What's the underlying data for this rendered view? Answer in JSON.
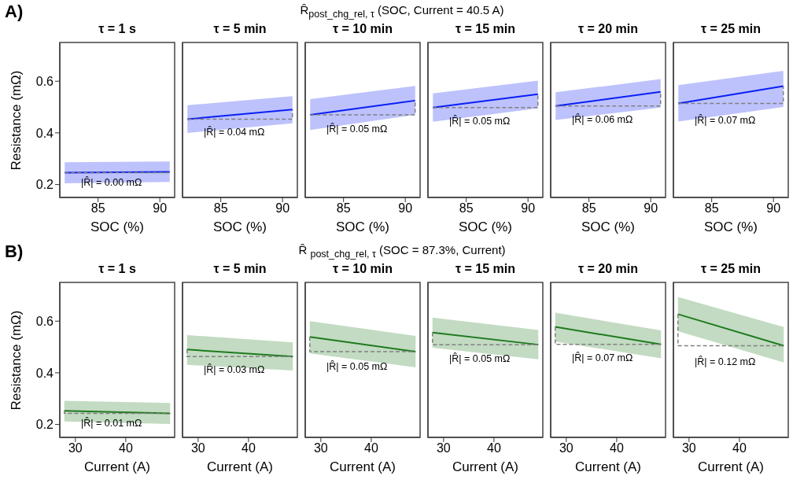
{
  "chart_data": [
    {
      "type": "line",
      "title": "τ = 1 s",
      "xlabel": "SOC (%)",
      "ylabel": "Resistance (mΩ)",
      "xlim": [
        81.9,
        91.2
      ],
      "xticks": [
        85,
        90
      ],
      "ylim": [
        0.15,
        0.75
      ],
      "yticks": [
        0.2,
        0.4,
        0.6
      ],
      "annotations": [
        "A)",
        "R̂$_{post_chg_rel, τ}$ (SOC, Current = 40.5 A)",
        "|R̂| = 0.00 mΩ"
      ],
      "series": [
        {
          "color": "#0a1ff5",
          "x": [
            82.3,
            90.8
          ],
          "values": [
            0.246,
            0.249
          ],
          "lower": [
            0.205,
            0.21
          ],
          "upper": [
            0.286,
            0.289
          ]
        },
        {
          "color": "#808080",
          "line_style": "dashed",
          "x": [
            82.3,
            90.8,
            90.8
          ],
          "values": [
            0.246,
            0.246,
            0.249
          ]
        }
      ]
    },
    {
      "type": "line",
      "title": "τ = 5 min",
      "xlabel": "SOC (%)",
      "xlim": [
        81.9,
        91.2
      ],
      "xticks": [
        85,
        90
      ],
      "ylim": [
        0.15,
        0.75
      ],
      "yticks": [
        0.2,
        0.4,
        0.6
      ],
      "tick_labels": "x",
      "annotations": [
        "|R̂| = 0.04 mΩ"
      ],
      "series": [
        {
          "color": "#0a1ff5",
          "x": [
            82.3,
            90.8
          ],
          "values": [
            0.453,
            0.49
          ],
          "lower": [
            0.4,
            0.437
          ],
          "upper": [
            0.507,
            0.542
          ]
        },
        {
          "color": "#808080",
          "line_style": "dashed",
          "x": [
            82.3,
            90.8,
            90.8
          ],
          "values": [
            0.453,
            0.453,
            0.49
          ]
        }
      ]
    },
    {
      "type": "line",
      "title": "τ = 10 min",
      "xlabel": "SOC (%)",
      "xlim": [
        81.9,
        91.2
      ],
      "xticks": [
        85,
        90
      ],
      "ylim": [
        0.15,
        0.75
      ],
      "yticks": [
        0.2,
        0.4,
        0.6
      ],
      "tick_labels": "x",
      "annotations": [
        "|R̂| = 0.05 mΩ"
      ],
      "series": [
        {
          "color": "#0a1ff5",
          "x": [
            82.3,
            90.8
          ],
          "values": [
            0.47,
            0.525
          ],
          "lower": [
            0.411,
            0.47
          ],
          "upper": [
            0.531,
            0.582
          ]
        },
        {
          "color": "#808080",
          "line_style": "dashed",
          "x": [
            82.3,
            90.8,
            90.8
          ],
          "values": [
            0.47,
            0.47,
            0.525
          ]
        }
      ]
    },
    {
      "type": "line",
      "title": "τ = 15 min",
      "xlabel": "SOC (%)",
      "xlim": [
        81.9,
        91.2
      ],
      "xticks": [
        85,
        90
      ],
      "ylim": [
        0.15,
        0.75
      ],
      "yticks": [
        0.2,
        0.4,
        0.6
      ],
      "tick_labels": "x",
      "annotations": [
        "|R̂| = 0.05 mΩ"
      ],
      "series": [
        {
          "color": "#0a1ff5",
          "x": [
            82.3,
            90.8
          ],
          "values": [
            0.498,
            0.55
          ],
          "lower": [
            0.443,
            0.495
          ],
          "upper": [
            0.553,
            0.602
          ]
        },
        {
          "color": "#808080",
          "line_style": "dashed",
          "x": [
            82.3,
            90.8,
            90.8
          ],
          "values": [
            0.498,
            0.498,
            0.55
          ]
        }
      ]
    },
    {
      "type": "line",
      "title": "τ = 20 min",
      "xlabel": "SOC (%)",
      "xlim": [
        81.9,
        91.2
      ],
      "xticks": [
        85,
        90
      ],
      "ylim": [
        0.15,
        0.75
      ],
      "yticks": [
        0.2,
        0.4,
        0.6
      ],
      "tick_labels": "x",
      "annotations": [
        "|R̂| = 0.06 mΩ"
      ],
      "series": [
        {
          "color": "#0a1ff5",
          "x": [
            82.3,
            90.8
          ],
          "values": [
            0.504,
            0.559
          ],
          "lower": [
            0.45,
            0.498
          ],
          "upper": [
            0.557,
            0.608
          ]
        },
        {
          "color": "#808080",
          "line_style": "dashed",
          "x": [
            82.3,
            90.8,
            90.8
          ],
          "values": [
            0.504,
            0.504,
            0.559
          ]
        }
      ]
    },
    {
      "type": "line",
      "title": "τ = 25 min",
      "xlabel": "SOC (%)",
      "xlim": [
        81.9,
        91.2
      ],
      "xticks": [
        85,
        90
      ],
      "ylim": [
        0.15,
        0.75
      ],
      "yticks": [
        0.2,
        0.4,
        0.6
      ],
      "tick_labels": "x",
      "annotations": [
        "|R̂| = 0.07 mΩ"
      ],
      "series": [
        {
          "color": "#0a1ff5",
          "x": [
            82.3,
            90.8
          ],
          "values": [
            0.514,
            0.581
          ],
          "lower": [
            0.444,
            0.5
          ],
          "upper": [
            0.585,
            0.64
          ]
        },
        {
          "color": "#808080",
          "line_style": "dashed",
          "x": [
            82.3,
            90.8,
            90.8
          ],
          "values": [
            0.514,
            0.514,
            0.581
          ]
        }
      ]
    },
    {
      "type": "line",
      "title": "τ = 1 s",
      "xlabel": "Current (A)",
      "ylabel": "Resistance (mΩ)",
      "xlim": [
        26.9,
        49.7
      ],
      "xticks": [
        30,
        40
      ],
      "ylim": [
        0.15,
        0.75
      ],
      "yticks": [
        0.2,
        0.4,
        0.6
      ],
      "annotations": [
        "B)",
        "R̂ $_{post_chg_rel, τ}$ (SOC = 87.3%, Current)",
        "|R̂| = 0.01 mΩ"
      ],
      "series": [
        {
          "color": "#1f7a1f",
          "x": [
            27.8,
            48.8
          ],
          "values": [
            0.253,
            0.243
          ],
          "lower": [
            0.212,
            0.202
          ],
          "upper": [
            0.292,
            0.283
          ]
        },
        {
          "color": "#808080",
          "line_style": "dashed",
          "x": [
            27.8,
            27.8,
            48.8
          ],
          "values": [
            0.253,
            0.243,
            0.243
          ]
        }
      ]
    },
    {
      "type": "line",
      "title": "τ = 5 min",
      "xlabel": "Current (A)",
      "xlim": [
        26.9,
        49.7
      ],
      "xticks": [
        30,
        40
      ],
      "ylim": [
        0.15,
        0.75
      ],
      "yticks": [
        0.2,
        0.4,
        0.6
      ],
      "tick_labels": "x",
      "annotations": [
        "|R̂| = 0.03 mΩ"
      ],
      "series": [
        {
          "color": "#1f7a1f",
          "x": [
            27.8,
            48.8
          ],
          "values": [
            0.49,
            0.463
          ],
          "lower": [
            0.431,
            0.409
          ],
          "upper": [
            0.546,
            0.518
          ]
        },
        {
          "color": "#808080",
          "line_style": "dashed",
          "x": [
            27.8,
            27.8,
            48.8
          ],
          "values": [
            0.49,
            0.463,
            0.463
          ]
        }
      ]
    },
    {
      "type": "line",
      "title": "τ = 10 min",
      "xlabel": "Current (A)",
      "xlim": [
        26.9,
        49.7
      ],
      "xticks": [
        30,
        40
      ],
      "ylim": [
        0.15,
        0.75
      ],
      "yticks": [
        0.2,
        0.4,
        0.6
      ],
      "tick_labels": "x",
      "annotations": [
        "|R̂| = 0.05 mΩ"
      ],
      "series": [
        {
          "color": "#1f7a1f",
          "x": [
            27.8,
            48.8
          ],
          "values": [
            0.539,
            0.482
          ],
          "lower": [
            0.475,
            0.421
          ],
          "upper": [
            0.6,
            0.543
          ]
        },
        {
          "color": "#808080",
          "line_style": "dashed",
          "x": [
            27.8,
            27.8,
            48.8
          ],
          "values": [
            0.539,
            0.482,
            0.482
          ]
        }
      ]
    },
    {
      "type": "line",
      "title": "τ = 15 min",
      "xlabel": "Current (A)",
      "xlim": [
        26.9,
        49.7
      ],
      "xticks": [
        30,
        40
      ],
      "ylim": [
        0.15,
        0.75
      ],
      "yticks": [
        0.2,
        0.4,
        0.6
      ],
      "tick_labels": "x",
      "annotations": [
        "|R̂| = 0.05 mΩ"
      ],
      "series": [
        {
          "color": "#1f7a1f",
          "x": [
            27.8,
            48.8
          ],
          "values": [
            0.556,
            0.509
          ],
          "lower": [
            0.497,
            0.452
          ],
          "upper": [
            0.614,
            0.566
          ]
        },
        {
          "color": "#808080",
          "line_style": "dashed",
          "x": [
            27.8,
            27.8,
            48.8
          ],
          "values": [
            0.556,
            0.509,
            0.509
          ]
        }
      ]
    },
    {
      "type": "line",
      "title": "τ = 20 min",
      "xlabel": "Current (A)",
      "xlim": [
        26.9,
        49.7
      ],
      "xticks": [
        30,
        40
      ],
      "ylim": [
        0.15,
        0.75
      ],
      "yticks": [
        0.2,
        0.4,
        0.6
      ],
      "tick_labels": "x",
      "annotations": [
        "|R̂| = 0.07 mΩ"
      ],
      "series": [
        {
          "color": "#1f7a1f",
          "x": [
            27.8,
            48.8
          ],
          "values": [
            0.578,
            0.51
          ],
          "lower": [
            0.521,
            0.456
          ],
          "upper": [
            0.633,
            0.564
          ]
        },
        {
          "color": "#808080",
          "line_style": "dashed",
          "x": [
            27.8,
            27.8,
            48.8
          ],
          "values": [
            0.578,
            0.51,
            0.51
          ]
        }
      ]
    },
    {
      "type": "line",
      "title": "τ = 25 min",
      "xlabel": "Current (A)",
      "xlim": [
        26.9,
        49.7
      ],
      "xticks": [
        30,
        40
      ],
      "ylim": [
        0.15,
        0.75
      ],
      "yticks": [
        0.2,
        0.4,
        0.6
      ],
      "tick_labels": "x",
      "annotations": [
        "|R̂| = 0.12 mΩ"
      ],
      "series": [
        {
          "color": "#1f7a1f",
          "x": [
            27.8,
            48.8
          ],
          "values": [
            0.627,
            0.505
          ],
          "lower": [
            0.561,
            0.44
          ],
          "upper": [
            0.694,
            0.577
          ]
        },
        {
          "color": "#808080",
          "line_style": "dashed",
          "x": [
            27.8,
            27.8,
            48.8
          ],
          "values": [
            0.627,
            0.505,
            0.505
          ]
        }
      ]
    }
  ]
}
